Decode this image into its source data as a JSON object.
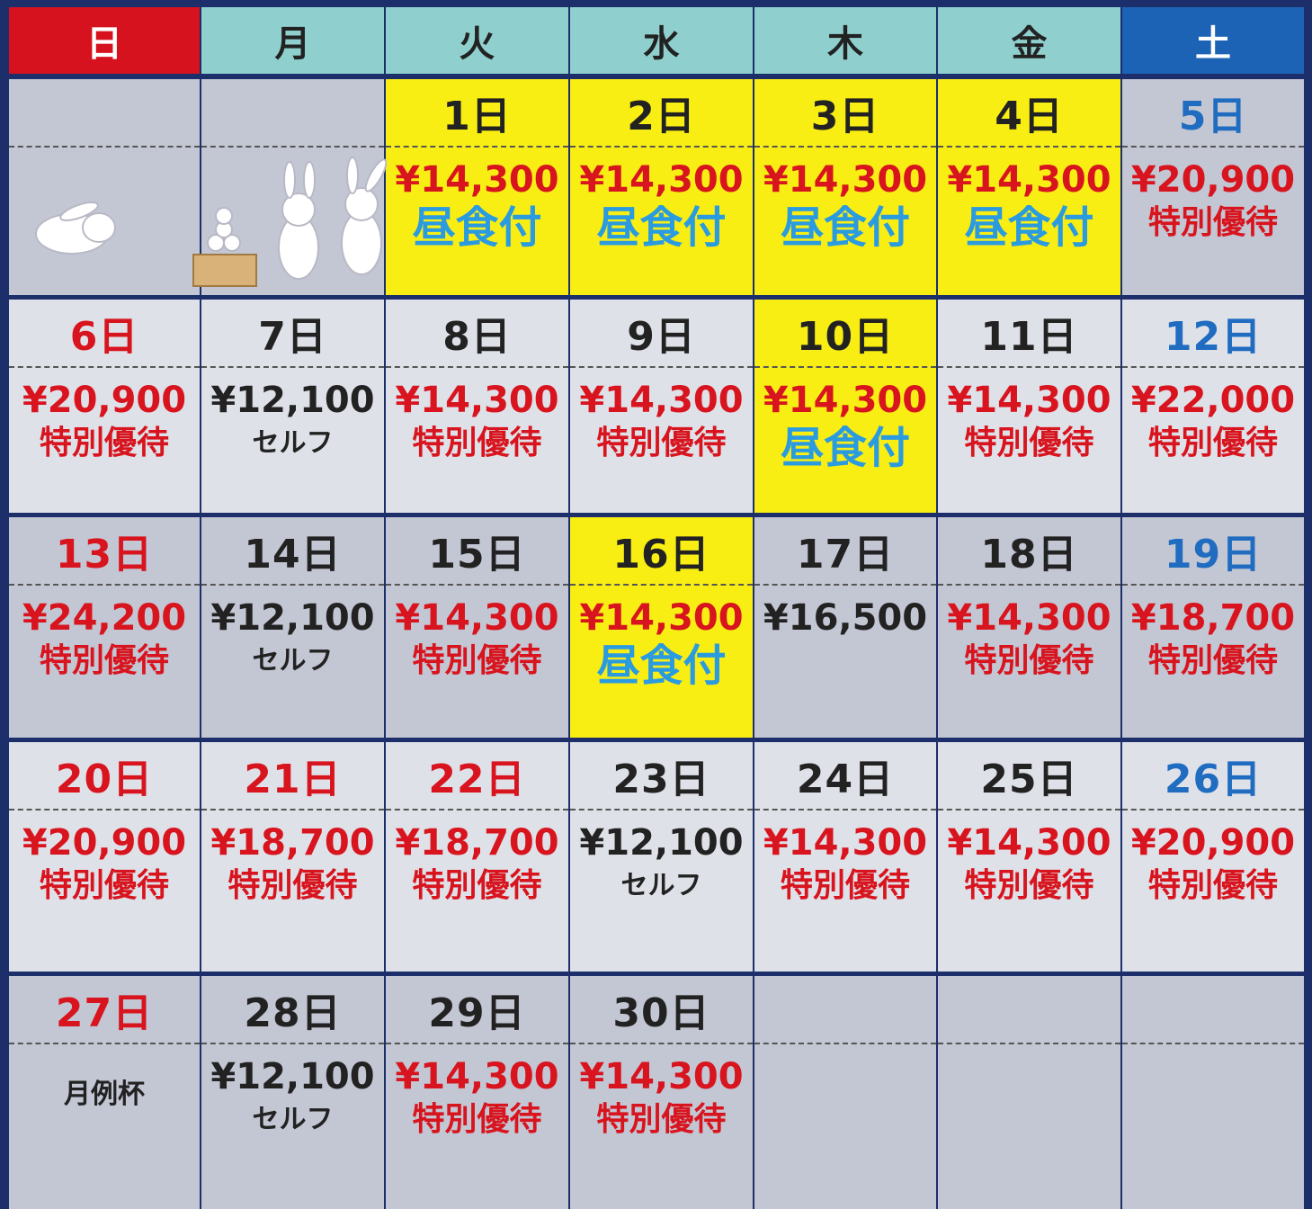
{
  "header": {
    "days": [
      {
        "label": "日",
        "bg": "#d5121d",
        "color": "#ffffff"
      },
      {
        "label": "月",
        "bg": "#8fd0cf",
        "color": "#222222"
      },
      {
        "label": "火",
        "bg": "#8fd0cf",
        "color": "#222222"
      },
      {
        "label": "水",
        "bg": "#8fd0cf",
        "color": "#222222"
      },
      {
        "label": "木",
        "bg": "#8fd0cf",
        "color": "#222222"
      },
      {
        "label": "金",
        "bg": "#8fd0cf",
        "color": "#222222"
      },
      {
        "label": "土",
        "bg": "#1d63b5",
        "color": "#ffffff"
      }
    ]
  },
  "weeks": [
    [
      null,
      null,
      {
        "date": "1日",
        "date_color": "#222222",
        "price": "¥14,300",
        "price_color": "#d8141e",
        "note": "昼食付",
        "note_color": "#2b9be0",
        "highlight": true
      },
      {
        "date": "2日",
        "date_color": "#222222",
        "price": "¥14,300",
        "price_color": "#d8141e",
        "note": "昼食付",
        "note_color": "#2b9be0",
        "highlight": true
      },
      {
        "date": "3日",
        "date_color": "#222222",
        "price": "¥14,300",
        "price_color": "#d8141e",
        "note": "昼食付",
        "note_color": "#2b9be0",
        "highlight": true
      },
      {
        "date": "4日",
        "date_color": "#222222",
        "price": "¥14,300",
        "price_color": "#d8141e",
        "note": "昼食付",
        "note_color": "#2b9be0",
        "highlight": true
      },
      {
        "date": "5日",
        "date_color": "#1f6cc0",
        "price": "¥20,900",
        "price_color": "#d8141e",
        "note": "特別優待",
        "note_color": "#d8141e"
      }
    ],
    [
      {
        "date": "6日",
        "date_color": "#d8141e",
        "price": "¥20,900",
        "price_color": "#d8141e",
        "note": "特別優待",
        "note_color": "#d8141e"
      },
      {
        "date": "7日",
        "date_color": "#222222",
        "price": "¥12,100",
        "price_color": "#222222",
        "note": "セルフ",
        "note_color": "#222222"
      },
      {
        "date": "8日",
        "date_color": "#222222",
        "price": "¥14,300",
        "price_color": "#d8141e",
        "note": "特別優待",
        "note_color": "#d8141e"
      },
      {
        "date": "9日",
        "date_color": "#222222",
        "price": "¥14,300",
        "price_color": "#d8141e",
        "note": "特別優待",
        "note_color": "#d8141e"
      },
      {
        "date": "10日",
        "date_color": "#222222",
        "price": "¥14,300",
        "price_color": "#d8141e",
        "note": "昼食付",
        "note_color": "#2b9be0",
        "highlight": true
      },
      {
        "date": "11日",
        "date_color": "#222222",
        "price": "¥14,300",
        "price_color": "#d8141e",
        "note": "特別優待",
        "note_color": "#d8141e"
      },
      {
        "date": "12日",
        "date_color": "#1f6cc0",
        "price": "¥22,000",
        "price_color": "#d8141e",
        "note": "特別優待",
        "note_color": "#d8141e"
      }
    ],
    [
      {
        "date": "13日",
        "date_color": "#d8141e",
        "price": "¥24,200",
        "price_color": "#d8141e",
        "note": "特別優待",
        "note_color": "#d8141e"
      },
      {
        "date": "14日",
        "date_color": "#222222",
        "price": "¥12,100",
        "price_color": "#222222",
        "note": "セルフ",
        "note_color": "#222222"
      },
      {
        "date": "15日",
        "date_color": "#222222",
        "price": "¥14,300",
        "price_color": "#d8141e",
        "note": "特別優待",
        "note_color": "#d8141e"
      },
      {
        "date": "16日",
        "date_color": "#222222",
        "price": "¥14,300",
        "price_color": "#d8141e",
        "note": "昼食付",
        "note_color": "#2b9be0",
        "highlight": true
      },
      {
        "date": "17日",
        "date_color": "#222222",
        "price": "¥16,500",
        "price_color": "#222222"
      },
      {
        "date": "18日",
        "date_color": "#222222",
        "price": "¥14,300",
        "price_color": "#d8141e",
        "note": "特別優待",
        "note_color": "#d8141e"
      },
      {
        "date": "19日",
        "date_color": "#1f6cc0",
        "price": "¥18,700",
        "price_color": "#d8141e",
        "note": "特別優待",
        "note_color": "#d8141e"
      }
    ],
    [
      {
        "date": "20日",
        "date_color": "#d8141e",
        "price": "¥20,900",
        "price_color": "#d8141e",
        "note": "特別優待",
        "note_color": "#d8141e"
      },
      {
        "date": "21日",
        "date_color": "#d8141e",
        "price": "¥18,700",
        "price_color": "#d8141e",
        "note": "特別優待",
        "note_color": "#d8141e"
      },
      {
        "date": "22日",
        "date_color": "#d8141e",
        "price": "¥18,700",
        "price_color": "#d8141e",
        "note": "特別優待",
        "note_color": "#d8141e"
      },
      {
        "date": "23日",
        "date_color": "#222222",
        "price": "¥12,100",
        "price_color": "#222222",
        "note": "セルフ",
        "note_color": "#222222"
      },
      {
        "date": "24日",
        "date_color": "#222222",
        "price": "¥14,300",
        "price_color": "#d8141e",
        "note": "特別優待",
        "note_color": "#d8141e"
      },
      {
        "date": "25日",
        "date_color": "#222222",
        "price": "¥14,300",
        "price_color": "#d8141e",
        "note": "特別優待",
        "note_color": "#d8141e"
      },
      {
        "date": "26日",
        "date_color": "#1f6cc0",
        "price": "¥20,900",
        "price_color": "#d8141e",
        "note": "特別優待",
        "note_color": "#d8141e"
      }
    ],
    [
      {
        "date": "27日",
        "date_color": "#d8141e",
        "note": "月例杯",
        "note_color": "#222222"
      },
      {
        "date": "28日",
        "date_color": "#222222",
        "price": "¥12,100",
        "price_color": "#222222",
        "note": "セルフ",
        "note_color": "#222222"
      },
      {
        "date": "29日",
        "date_color": "#222222",
        "price": "¥14,300",
        "price_color": "#d8141e",
        "note": "特別優待",
        "note_color": "#d8141e"
      },
      {
        "date": "30日",
        "date_color": "#222222",
        "price": "¥14,300",
        "price_color": "#d8141e",
        "note": "特別優待",
        "note_color": "#d8141e"
      },
      null,
      null,
      null
    ]
  ]
}
